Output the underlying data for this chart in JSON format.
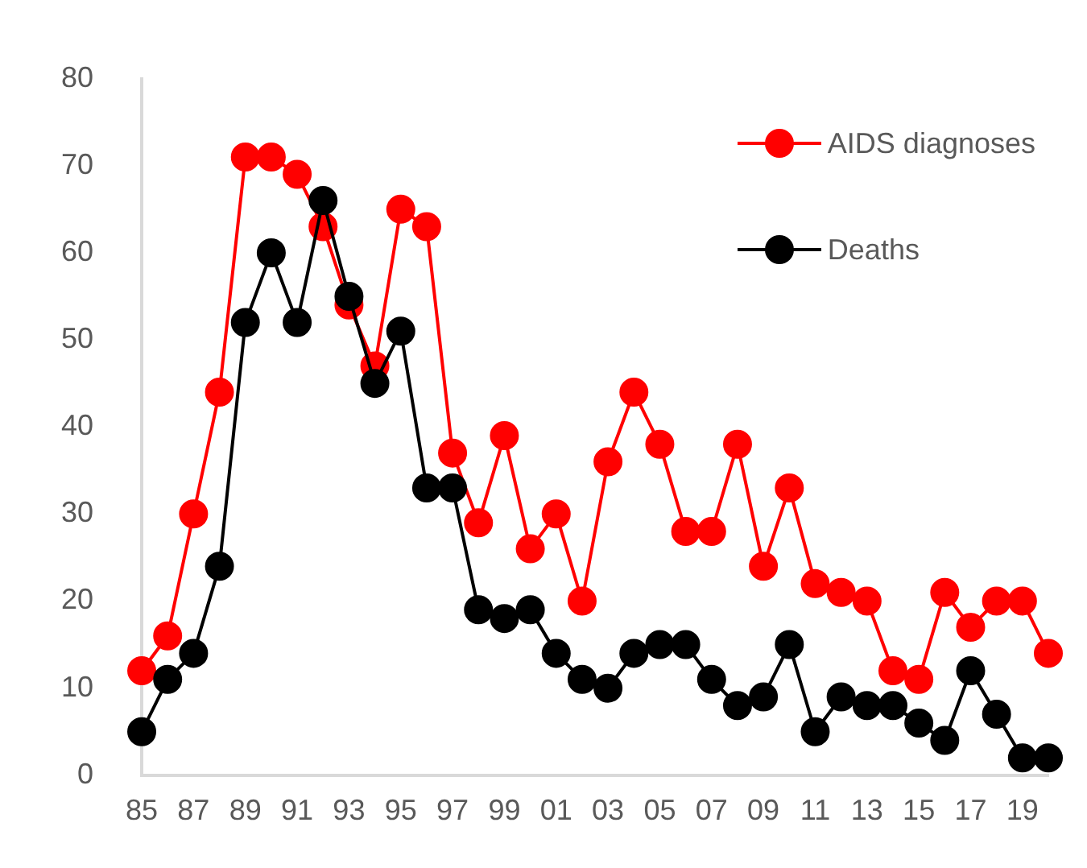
{
  "chart_data": {
    "type": "line",
    "categories": [
      "85",
      null,
      "87",
      null,
      "89",
      null,
      "91",
      null,
      "93",
      null,
      "95",
      null,
      "97",
      null,
      "99",
      null,
      "01",
      null,
      "03",
      null,
      "05",
      null,
      "07",
      null,
      "09",
      null,
      "11",
      null,
      "13",
      null,
      "15",
      null,
      "17",
      null,
      "19",
      null
    ],
    "series": [
      {
        "name": "AIDS diagnoses",
        "color": "#ff0000",
        "values": [
          12,
          16,
          30,
          44,
          71,
          71,
          69,
          63,
          54,
          47,
          65,
          63,
          37,
          29,
          39,
          26,
          30,
          20,
          36,
          44,
          38,
          28,
          28,
          38,
          24,
          33,
          22,
          21,
          20,
          12,
          11,
          21,
          17,
          20,
          20,
          14
        ]
      },
      {
        "name": "Deaths",
        "color": "#000000",
        "values": [
          5,
          11,
          14,
          24,
          52,
          60,
          52,
          66,
          55,
          45,
          51,
          33,
          33,
          19,
          18,
          19,
          14,
          11,
          10,
          14,
          15,
          15,
          11,
          8,
          9,
          15,
          5,
          9,
          8,
          8,
          6,
          4,
          12,
          7,
          2,
          2
        ]
      }
    ],
    "ylim": [
      0,
      80
    ],
    "yticks": [
      0,
      10,
      20,
      30,
      40,
      50,
      60,
      70,
      80
    ],
    "grid": false,
    "legend": "top right",
    "marker": "circle",
    "line_style": "solid"
  }
}
